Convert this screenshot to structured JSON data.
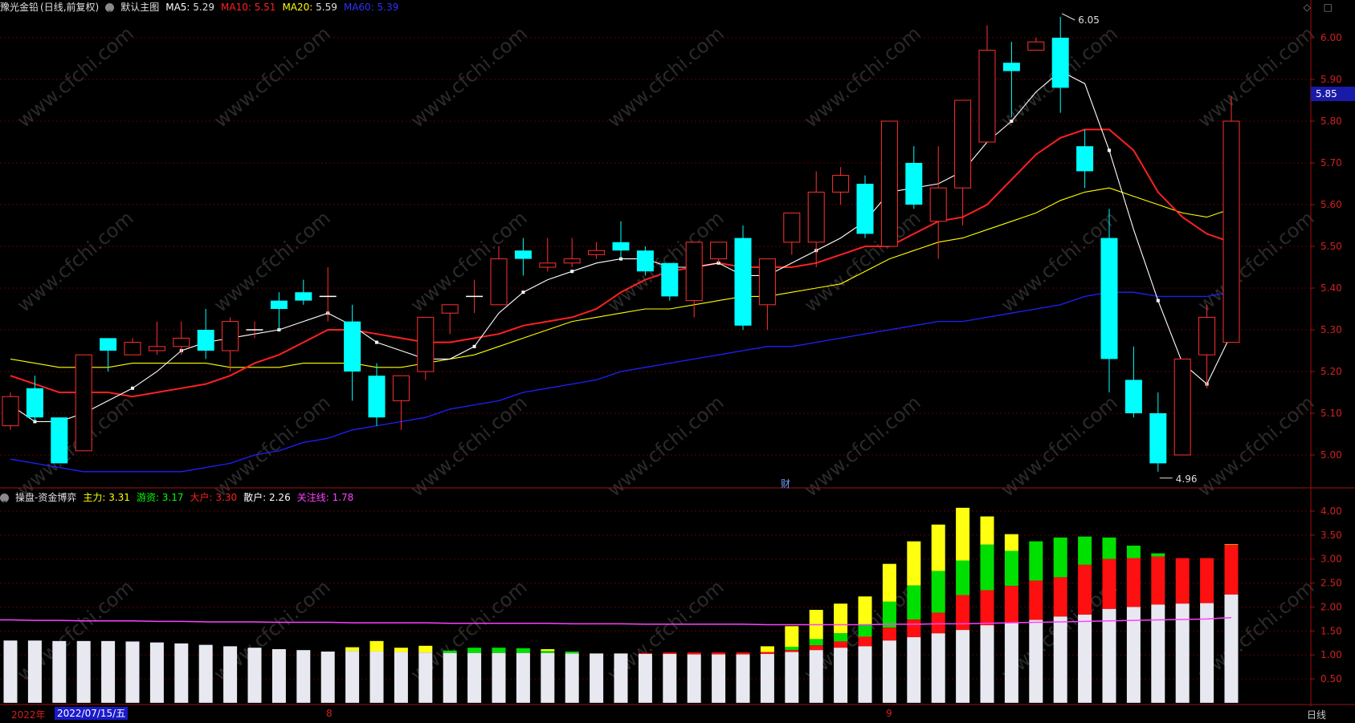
{
  "header": {
    "stock_name": "豫光金铅",
    "period_mode": "(日线,前复权)",
    "main_chart": "默认主图",
    "ma": [
      {
        "label": "MA5:",
        "value": "5.29",
        "color": "#ffffff"
      },
      {
        "label": "MA10:",
        "value": "5.51",
        "color": "#ff2020"
      },
      {
        "label": "MA20:",
        "value": "5.59",
        "color": "#ffff00"
      },
      {
        "label": "MA60:",
        "value": "5.39",
        "color": "#3030ff"
      }
    ]
  },
  "sub_header": {
    "indicator": "操盘-资金博弈",
    "items": [
      {
        "label": "主力:",
        "value": "3.31",
        "color": "#ffff00"
      },
      {
        "label": "游资:",
        "value": "3.17",
        "color": "#00ff00"
      },
      {
        "label": "大户:",
        "value": "3.30",
        "color": "#ff2020"
      },
      {
        "label": "散户:",
        "value": "2.26",
        "color": "#ffffff"
      },
      {
        "label": "关注线:",
        "value": "1.78",
        "color": "#ff40ff"
      }
    ]
  },
  "top_icons": "◇ □",
  "current_price_tag": "5.85",
  "high_mark": "6.05",
  "low_mark": "4.96",
  "event_mark": "财",
  "watermark": "www.cfchi.com",
  "bottom": {
    "year_label": "2022年",
    "cursor_date": "2022/07/15/五",
    "month_8": "8",
    "month_9": "9",
    "period_label": "日线"
  },
  "colors": {
    "up": "#ff3030",
    "down": "#00ffff",
    "ma5": "#ffffff",
    "ma10": "#ff2020",
    "ma20": "#ffff00",
    "ma60": "#2020ff",
    "grid": "#600000",
    "axis": "#d02020"
  },
  "chart_data": [
    {
      "type": "candlestick",
      "title": "豫光金铅 (日线,前复权)",
      "ylim": [
        4.9,
        6.1
      ],
      "y_ticks": [
        "6.00",
        "5.90",
        "5.80",
        "5.70",
        "5.60",
        "5.50",
        "5.40",
        "5.30",
        "5.20",
        "5.10",
        "5.00"
      ],
      "candles": [
        {
          "o": 5.07,
          "c": 5.14,
          "h": 5.15,
          "l": 5.06
        },
        {
          "o": 5.16,
          "c": 5.09,
          "h": 5.19,
          "l": 5.08
        },
        {
          "o": 5.09,
          "c": 4.98,
          "h": 5.09,
          "l": 4.98
        },
        {
          "o": 5.01,
          "c": 5.24,
          "h": 5.24,
          "l": 5.01
        },
        {
          "o": 5.28,
          "c": 5.25,
          "h": 5.28,
          "l": 5.2
        },
        {
          "o": 5.24,
          "c": 5.27,
          "h": 5.28,
          "l": 5.24
        },
        {
          "o": 5.25,
          "c": 5.26,
          "h": 5.32,
          "l": 5.24
        },
        {
          "o": 5.26,
          "c": 5.28,
          "h": 5.32,
          "l": 5.24
        },
        {
          "o": 5.3,
          "c": 5.25,
          "h": 5.35,
          "l": 5.23
        },
        {
          "o": 5.25,
          "c": 5.32,
          "h": 5.33,
          "l": 5.2
        },
        {
          "o": 5.3,
          "c": 5.3,
          "h": 5.32,
          "l": 5.28
        },
        {
          "o": 5.37,
          "c": 5.35,
          "h": 5.39,
          "l": 5.3
        },
        {
          "o": 5.39,
          "c": 5.37,
          "h": 5.42,
          "l": 5.36
        },
        {
          "o": 5.38,
          "c": 5.38,
          "h": 5.45,
          "l": 5.32
        },
        {
          "o": 5.32,
          "c": 5.2,
          "h": 5.36,
          "l": 5.13
        },
        {
          "o": 5.19,
          "c": 5.09,
          "h": 5.22,
          "l": 5.07
        },
        {
          "o": 5.13,
          "c": 5.19,
          "h": 5.19,
          "l": 5.06
        },
        {
          "o": 5.2,
          "c": 5.33,
          "h": 5.33,
          "l": 5.18
        },
        {
          "o": 5.34,
          "c": 5.36,
          "h": 5.36,
          "l": 5.29
        },
        {
          "o": 5.38,
          "c": 5.38,
          "h": 5.42,
          "l": 5.34
        },
        {
          "o": 5.36,
          "c": 5.47,
          "h": 5.5,
          "l": 5.36
        },
        {
          "o": 5.49,
          "c": 5.47,
          "h": 5.52,
          "l": 5.43
        },
        {
          "o": 5.45,
          "c": 5.46,
          "h": 5.52,
          "l": 5.44
        },
        {
          "o": 5.46,
          "c": 5.47,
          "h": 5.52,
          "l": 5.45
        },
        {
          "o": 5.48,
          "c": 5.49,
          "h": 5.51,
          "l": 5.47
        },
        {
          "o": 5.51,
          "c": 5.49,
          "h": 5.56,
          "l": 5.47
        },
        {
          "o": 5.49,
          "c": 5.44,
          "h": 5.5,
          "l": 5.43
        },
        {
          "o": 5.46,
          "c": 5.38,
          "h": 5.46,
          "l": 5.37
        },
        {
          "o": 5.37,
          "c": 5.51,
          "h": 5.51,
          "l": 5.33
        },
        {
          "o": 5.47,
          "c": 5.51,
          "h": 5.51,
          "l": 5.46
        },
        {
          "o": 5.52,
          "c": 5.31,
          "h": 5.55,
          "l": 5.3
        },
        {
          "o": 5.36,
          "c": 5.47,
          "h": 5.47,
          "l": 5.3
        },
        {
          "o": 5.51,
          "c": 5.58,
          "h": 5.58,
          "l": 5.48
        },
        {
          "o": 5.51,
          "c": 5.63,
          "h": 5.68,
          "l": 5.45
        },
        {
          "o": 5.63,
          "c": 5.67,
          "h": 5.69,
          "l": 5.6
        },
        {
          "o": 5.65,
          "c": 5.53,
          "h": 5.67,
          "l": 5.52
        },
        {
          "o": 5.5,
          "c": 5.8,
          "h": 5.8,
          "l": 5.5
        },
        {
          "o": 5.7,
          "c": 5.6,
          "h": 5.74,
          "l": 5.59
        },
        {
          "o": 5.56,
          "c": 5.64,
          "h": 5.74,
          "l": 5.47
        },
        {
          "o": 5.64,
          "c": 5.85,
          "h": 5.85,
          "l": 5.55
        },
        {
          "o": 5.75,
          "c": 5.97,
          "h": 6.03,
          "l": 5.75
        },
        {
          "o": 5.94,
          "c": 5.92,
          "h": 5.99,
          "l": 5.81
        },
        {
          "o": 5.97,
          "c": 5.99,
          "h": 6.0,
          "l": 5.97
        },
        {
          "o": 6.0,
          "c": 5.88,
          "h": 6.05,
          "l": 5.82
        },
        {
          "o": 5.74,
          "c": 5.68,
          "h": 5.78,
          "l": 5.64
        },
        {
          "o": 5.52,
          "c": 5.23,
          "h": 5.59,
          "l": 5.15
        },
        {
          "o": 5.18,
          "c": 5.1,
          "h": 5.26,
          "l": 5.09
        },
        {
          "o": 5.1,
          "c": 4.98,
          "h": 5.15,
          "l": 4.96
        },
        {
          "o": 5.0,
          "c": 5.23,
          "h": 5.23,
          "l": 5.0
        },
        {
          "o": 5.24,
          "c": 5.33,
          "h": 5.36,
          "l": 5.16
        },
        {
          "o": 5.27,
          "c": 5.8,
          "h": 5.86,
          "l": 5.27
        }
      ],
      "ma5": [
        5.12,
        5.08,
        5.08,
        5.1,
        5.13,
        5.16,
        5.2,
        5.25,
        5.27,
        5.28,
        5.29,
        5.3,
        5.32,
        5.34,
        5.31,
        5.27,
        5.25,
        5.23,
        5.23,
        5.26,
        5.34,
        5.39,
        5.42,
        5.44,
        5.46,
        5.47,
        5.47,
        5.45,
        5.45,
        5.46,
        5.43,
        5.43,
        5.46,
        5.49,
        5.52,
        5.56,
        5.63,
        5.64,
        5.65,
        5.68,
        5.75,
        5.8,
        5.87,
        5.92,
        5.89,
        5.73,
        5.54,
        5.37,
        5.22,
        5.17,
        5.29
      ],
      "ma10": [
        5.19,
        5.17,
        5.15,
        5.15,
        5.15,
        5.14,
        5.15,
        5.16,
        5.17,
        5.19,
        5.22,
        5.24,
        5.27,
        5.3,
        5.3,
        5.29,
        5.28,
        5.27,
        5.27,
        5.28,
        5.29,
        5.31,
        5.32,
        5.33,
        5.35,
        5.39,
        5.42,
        5.44,
        5.45,
        5.46,
        5.45,
        5.45,
        5.45,
        5.46,
        5.48,
        5.5,
        5.5,
        5.53,
        5.56,
        5.57,
        5.6,
        5.66,
        5.72,
        5.76,
        5.78,
        5.78,
        5.73,
        5.63,
        5.57,
        5.53,
        5.51
      ],
      "ma20": [
        5.23,
        5.22,
        5.21,
        5.21,
        5.21,
        5.22,
        5.22,
        5.22,
        5.22,
        5.21,
        5.21,
        5.21,
        5.22,
        5.22,
        5.22,
        5.21,
        5.21,
        5.22,
        5.23,
        5.24,
        5.26,
        5.28,
        5.3,
        5.32,
        5.33,
        5.34,
        5.35,
        5.35,
        5.36,
        5.37,
        5.38,
        5.38,
        5.39,
        5.4,
        5.41,
        5.44,
        5.47,
        5.49,
        5.51,
        5.52,
        5.54,
        5.56,
        5.58,
        5.61,
        5.63,
        5.64,
        5.62,
        5.6,
        5.58,
        5.57,
        5.59
      ],
      "ma60": [
        4.99,
        4.98,
        4.97,
        4.96,
        4.96,
        4.96,
        4.96,
        4.96,
        4.97,
        4.98,
        5.0,
        5.01,
        5.03,
        5.04,
        5.06,
        5.07,
        5.08,
        5.09,
        5.11,
        5.12,
        5.13,
        5.15,
        5.16,
        5.17,
        5.18,
        5.2,
        5.21,
        5.22,
        5.23,
        5.24,
        5.25,
        5.26,
        5.26,
        5.27,
        5.28,
        5.29,
        5.3,
        5.31,
        5.32,
        5.32,
        5.33,
        5.34,
        5.35,
        5.36,
        5.38,
        5.39,
        5.39,
        5.38,
        5.38,
        5.38,
        5.39
      ]
    },
    {
      "type": "bar",
      "title": "操盘-资金博弈",
      "ylim": [
        0,
        4.3
      ],
      "y_ticks": [
        "4.00",
        "3.50",
        "3.00",
        "2.50",
        "2.00",
        "1.50",
        "1.00",
        "0.50"
      ],
      "series": [
        {
          "name": "散户",
          "values": [
            1.3,
            1.3,
            1.29,
            1.29,
            1.29,
            1.28,
            1.26,
            1.24,
            1.21,
            1.18,
            1.15,
            1.12,
            1.1,
            1.07,
            1.08,
            1.07,
            1.06,
            1.05,
            1.04,
            1.04,
            1.04,
            1.04,
            1.04,
            1.03,
            1.03,
            1.03,
            1.02,
            1.02,
            1.01,
            1.01,
            1.01,
            1.02,
            1.06,
            1.1,
            1.15,
            1.18,
            1.3,
            1.37,
            1.45,
            1.52,
            1.62,
            1.68,
            1.73,
            1.8,
            1.84,
            1.96,
            2.0,
            2.05,
            2.07,
            2.08,
            2.26
          ]
        },
        {
          "name": "大户",
          "values": [
            1.3,
            1.3,
            1.29,
            1.29,
            1.29,
            1.28,
            1.26,
            1.24,
            1.21,
            1.18,
            1.15,
            1.12,
            1.1,
            1.07,
            1.08,
            1.07,
            1.06,
            1.05,
            1.04,
            1.04,
            1.04,
            1.04,
            1.04,
            1.03,
            1.03,
            1.03,
            1.04,
            1.05,
            1.05,
            1.05,
            1.05,
            1.06,
            1.1,
            1.2,
            1.28,
            1.38,
            1.57,
            1.74,
            1.88,
            2.25,
            2.35,
            2.44,
            2.55,
            2.62,
            2.88,
            3.0,
            3.02,
            3.05,
            3.02,
            3.02,
            3.3
          ]
        },
        {
          "name": "游资",
          "values": [
            1.3,
            1.3,
            1.29,
            1.29,
            1.29,
            1.28,
            1.26,
            1.24,
            1.21,
            1.18,
            1.15,
            1.12,
            1.1,
            1.07,
            1.08,
            1.07,
            1.06,
            1.05,
            1.09,
            1.15,
            1.15,
            1.14,
            1.08,
            1.07,
            1.03,
            1.03,
            1.04,
            1.05,
            1.05,
            1.05,
            1.05,
            1.06,
            1.17,
            1.33,
            1.45,
            1.62,
            2.11,
            2.45,
            2.75,
            2.97,
            3.3,
            3.17,
            3.37,
            3.45,
            3.47,
            3.45,
            3.28,
            3.12,
            3.02,
            3.02,
            3.17
          ]
        },
        {
          "name": "主力",
          "values": [
            1.3,
            1.3,
            1.29,
            1.29,
            1.29,
            1.28,
            1.26,
            1.24,
            1.21,
            1.18,
            1.15,
            1.12,
            1.1,
            1.07,
            1.16,
            1.29,
            1.15,
            1.19,
            1.09,
            1.15,
            1.15,
            1.14,
            1.12,
            1.07,
            1.03,
            1.03,
            1.04,
            1.05,
            1.05,
            1.05,
            1.05,
            1.18,
            1.6,
            1.94,
            2.07,
            2.22,
            2.9,
            3.37,
            3.72,
            4.07,
            3.89,
            3.52,
            3.37,
            3.45,
            3.47,
            3.45,
            3.28,
            3.12,
            3.02,
            3.02,
            3.31
          ]
        }
      ],
      "focus_line": [
        1.73,
        1.72,
        1.72,
        1.71,
        1.71,
        1.71,
        1.7,
        1.7,
        1.69,
        1.69,
        1.69,
        1.68,
        1.68,
        1.68,
        1.67,
        1.67,
        1.67,
        1.67,
        1.66,
        1.66,
        1.66,
        1.66,
        1.66,
        1.65,
        1.65,
        1.65,
        1.64,
        1.64,
        1.64,
        1.64,
        1.64,
        1.63,
        1.63,
        1.63,
        1.63,
        1.63,
        1.64,
        1.64,
        1.65,
        1.65,
        1.66,
        1.67,
        1.68,
        1.69,
        1.7,
        1.71,
        1.72,
        1.73,
        1.74,
        1.75,
        1.78
      ]
    }
  ]
}
